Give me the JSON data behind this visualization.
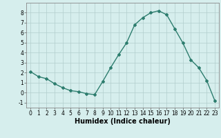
{
  "x": [
    0,
    1,
    2,
    3,
    4,
    5,
    6,
    7,
    8,
    9,
    10,
    11,
    12,
    13,
    14,
    15,
    16,
    17,
    18,
    19,
    20,
    21,
    22,
    23
  ],
  "y": [
    2.1,
    1.6,
    1.4,
    0.9,
    0.5,
    0.2,
    0.1,
    -0.1,
    -0.2,
    1.1,
    2.5,
    3.8,
    5.0,
    6.8,
    7.5,
    8.0,
    8.2,
    7.8,
    6.4,
    5.0,
    3.3,
    2.5,
    1.2,
    -0.8
  ],
  "line_color": "#2d7d6e",
  "marker": "D",
  "marker_size": 2.0,
  "bg_color": "#d6eeed",
  "grid_color": "#b2cecc",
  "xlabel": "Humidex (Indice chaleur)",
  "ylim": [
    -1.5,
    9.0
  ],
  "xlim": [
    -0.5,
    23.5
  ],
  "yticks": [
    -1,
    0,
    1,
    2,
    3,
    4,
    5,
    6,
    7,
    8
  ],
  "xticks": [
    0,
    1,
    2,
    3,
    4,
    5,
    6,
    7,
    8,
    9,
    10,
    11,
    12,
    13,
    14,
    15,
    16,
    17,
    18,
    19,
    20,
    21,
    22,
    23
  ],
  "tick_fontsize": 5.5,
  "xlabel_fontsize": 7.0,
  "line_width": 1.0
}
